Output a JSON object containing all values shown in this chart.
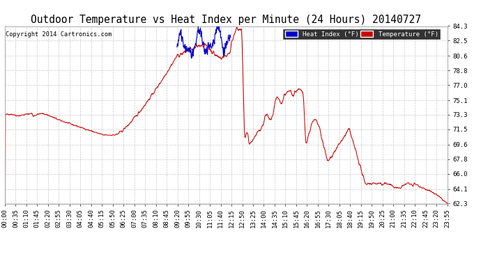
{
  "title": "Outdoor Temperature vs Heat Index per Minute (24 Hours) 20140727",
  "copyright": "Copyright 2014 Cartronics.com",
  "legend_heat_index": "Heat Index (°F)",
  "legend_temperature": "Temperature (°F)",
  "ylim": [
    62.3,
    84.3
  ],
  "yticks": [
    62.3,
    64.1,
    66.0,
    67.8,
    69.6,
    71.5,
    73.3,
    75.1,
    77.0,
    78.8,
    80.6,
    82.5,
    84.3
  ],
  "xtick_labels": [
    "00:00",
    "00:35",
    "01:10",
    "01:45",
    "02:20",
    "02:55",
    "03:30",
    "04:05",
    "04:40",
    "05:15",
    "05:50",
    "06:25",
    "07:00",
    "07:35",
    "08:10",
    "08:45",
    "09:20",
    "09:55",
    "10:30",
    "11:05",
    "11:40",
    "12:15",
    "12:50",
    "13:25",
    "14:00",
    "14:35",
    "15:10",
    "15:45",
    "16:20",
    "16:55",
    "17:30",
    "18:05",
    "18:40",
    "19:15",
    "19:50",
    "20:25",
    "21:00",
    "21:35",
    "22:10",
    "22:45",
    "23:20",
    "23:55"
  ],
  "temp_color": "#cc0000",
  "heat_color": "#0000cc",
  "bg_color": "#ffffff",
  "grid_color": "#bbbbbb",
  "title_fontsize": 10.5,
  "tick_fontsize": 6.5,
  "n_points": 1440
}
